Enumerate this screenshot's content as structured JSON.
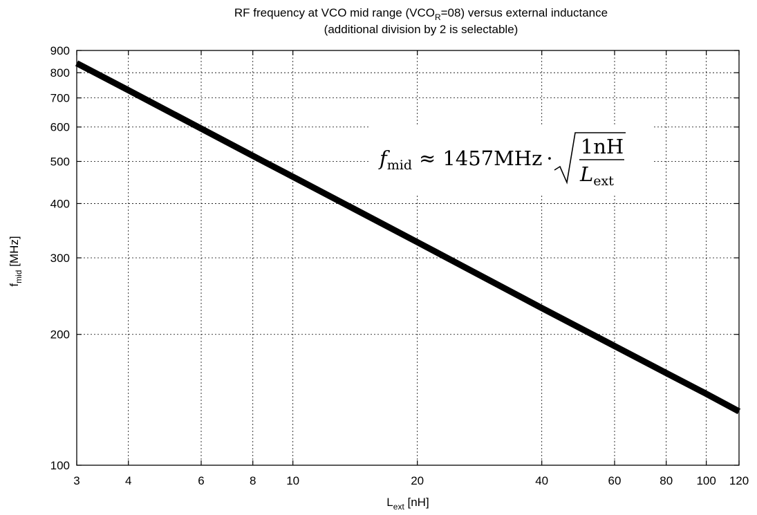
{
  "chart_data": {
    "type": "line",
    "title_line1": "RF frequency at VCO mid range (VCO",
    "title_sub": "R",
    "title_line1_end": "=08) versus external inductance",
    "title_line2": "(additional division by 2 is selectable)",
    "xlabel": "L",
    "xlabel_sub": "ext",
    "xlabel_unit": " [nH]",
    "ylabel": "f",
    "ylabel_sub": "mid",
    "ylabel_unit": " [MHz]",
    "x_scale": "log",
    "y_scale": "log",
    "xlim": [
      3,
      120
    ],
    "ylim": [
      100,
      900
    ],
    "x_ticks": [
      3,
      4,
      6,
      8,
      10,
      20,
      40,
      60,
      80,
      100,
      120
    ],
    "x_tick_labels": [
      "3",
      "4",
      "6",
      "8",
      "10",
      "20",
      "40",
      "60",
      "80",
      "100",
      "120"
    ],
    "y_ticks": [
      100,
      200,
      300,
      400,
      500,
      600,
      700,
      800,
      900
    ],
    "y_tick_labels": [
      "100",
      "200",
      "300",
      "400",
      "500",
      "600",
      "700",
      "800",
      "900"
    ],
    "grid": true,
    "series": [
      {
        "x": [
          3,
          4,
          6,
          8,
          10,
          20,
          40,
          60,
          80,
          100,
          120
        ],
        "y": [
          841,
          729,
          595,
          515,
          461,
          326,
          230,
          188,
          163,
          146,
          133
        ],
        "color": "#000000"
      }
    ],
    "annotation": {
      "f": "f",
      "f_sub": "mid",
      "approx": "≈",
      "value": "1457MHz",
      "dot": "·",
      "numerator": "1nH",
      "denominator": "L",
      "denominator_sub": "ext"
    }
  }
}
